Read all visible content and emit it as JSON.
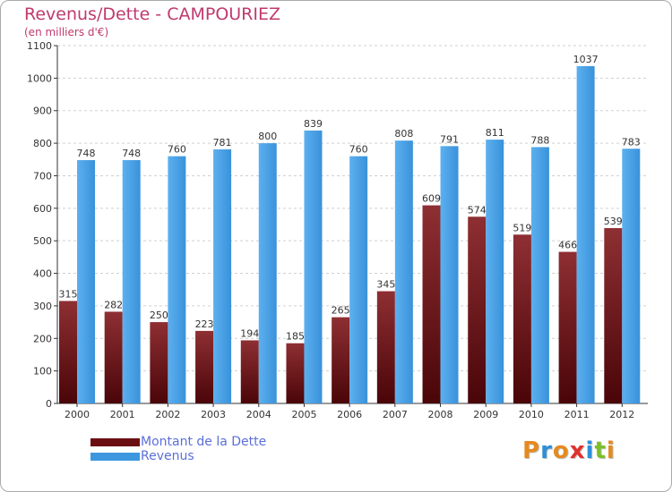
{
  "chart_data": {
    "type": "bar",
    "title": "Revenus/Dette - CAMPOURIEZ",
    "subtitle": "(en milliers d'€)",
    "categories": [
      "2000",
      "2001",
      "2002",
      "2003",
      "2004",
      "2005",
      "2006",
      "2007",
      "2008",
      "2009",
      "2010",
      "2011",
      "2012"
    ],
    "series": [
      {
        "name": "Montant de la Dette",
        "color": "#6b0e12",
        "values": [
          315,
          282,
          250,
          223,
          194,
          185,
          265,
          345,
          609,
          574,
          519,
          466,
          539
        ]
      },
      {
        "name": "Revenus",
        "color": "#3d97df",
        "values": [
          748,
          748,
          760,
          781,
          800,
          839,
          760,
          808,
          791,
          811,
          788,
          1037,
          783
        ]
      }
    ],
    "ylim": [
      0,
      1100
    ],
    "yticks": [
      0,
      100,
      200,
      300,
      400,
      500,
      600,
      700,
      800,
      900,
      1000,
      1100
    ],
    "grid": true,
    "legend_position": "bottom-left"
  },
  "logo": {
    "letters": [
      "P",
      "r",
      "o",
      "x",
      "i",
      "t",
      "i"
    ],
    "colors": [
      "#e58a1f",
      "#2e8fd6",
      "#e58a1f",
      "#e0312e",
      "#2e8fd6",
      "#7cbf2a",
      "#e58a1f"
    ]
  }
}
